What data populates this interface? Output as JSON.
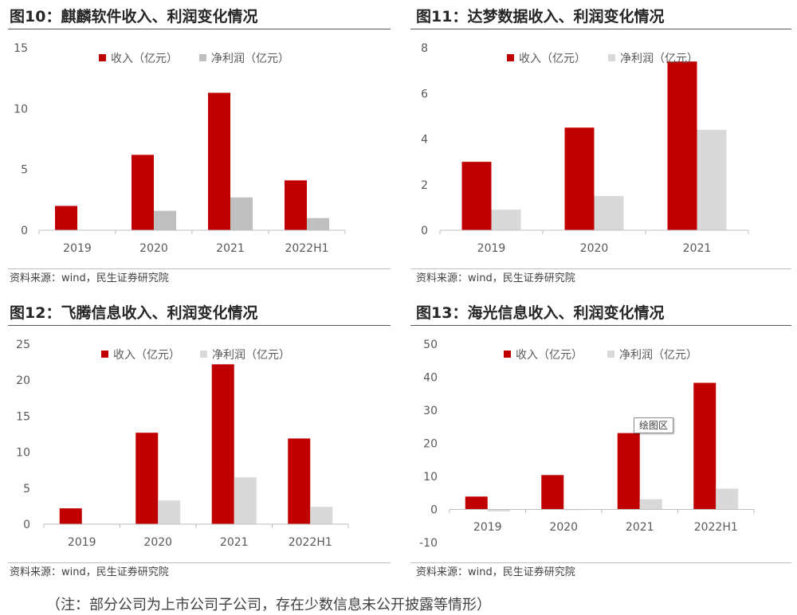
{
  "chart_data": [
    {
      "type": "bar",
      "title": "图10：麒麟软件收入、利润变化情况",
      "categories": [
        "2019",
        "2020",
        "2021",
        "2022H1"
      ],
      "series": [
        {
          "name": "收入（亿元）",
          "color": "#c00000",
          "values": [
            2.0,
            6.2,
            11.3,
            4.1
          ]
        },
        {
          "name": "净利润（亿元）",
          "color": "#bfbfbf",
          "values": [
            null,
            1.6,
            2.7,
            1.0
          ]
        }
      ],
      "ylim": [
        0,
        15
      ],
      "yticks": [
        0,
        5,
        10,
        15
      ],
      "grid": false,
      "legend": "top",
      "source": "资料来源：wind，民生证券研究院"
    },
    {
      "type": "bar",
      "title": "图11：达梦数据收入、利润变化情况",
      "categories": [
        "2019",
        "2020",
        "2021"
      ],
      "series": [
        {
          "name": "收入（亿元）",
          "color": "#c00000",
          "values": [
            3.0,
            4.5,
            7.4
          ]
        },
        {
          "name": "净利润（亿元）",
          "color": "#d9d9d9",
          "values": [
            0.9,
            1.5,
            4.4
          ]
        }
      ],
      "ylim": [
        0,
        8
      ],
      "yticks": [
        0,
        2,
        4,
        6,
        8
      ],
      "grid": false,
      "legend": "top",
      "source": "资料来源：wind，民生证券研究院"
    },
    {
      "type": "bar",
      "title": "图12：飞腾信息收入、利润变化情况",
      "categories": [
        "2019",
        "2020",
        "2021",
        "2022H1"
      ],
      "series": [
        {
          "name": "收入（亿元）",
          "color": "#c00000",
          "values": [
            2.2,
            12.7,
            22.2,
            11.9
          ]
        },
        {
          "name": "净利润（亿元）",
          "color": "#d9d9d9",
          "values": [
            null,
            3.3,
            6.5,
            2.4
          ]
        }
      ],
      "ylim": [
        0,
        25
      ],
      "yticks": [
        0,
        5,
        10,
        15,
        20,
        25
      ],
      "grid": false,
      "legend": "top",
      "source": "资料来源：wind，民生证券研究院"
    },
    {
      "type": "bar",
      "title": "图13：海光信息收入、利润变化情况",
      "categories": [
        "2019",
        "2020",
        "2021",
        "2022H1"
      ],
      "series": [
        {
          "name": "收入（亿元）",
          "color": "#c00000",
          "values": [
            3.9,
            10.4,
            23.1,
            38.3
          ]
        },
        {
          "name": "净利润（亿元）",
          "color": "#d9d9d9",
          "values": [
            -0.6,
            -0.2,
            3.1,
            6.3
          ]
        }
      ],
      "ylim": [
        -10,
        50
      ],
      "yticks": [
        -10,
        0,
        10,
        20,
        30,
        40,
        50
      ],
      "grid": false,
      "legend": "top",
      "annotation": "绘图区",
      "source": "资料来源：wind，民生证券研究院"
    }
  ],
  "footnote": "（注：部分公司为上市公司子公司，存在少数信息未公开披露等情形）"
}
